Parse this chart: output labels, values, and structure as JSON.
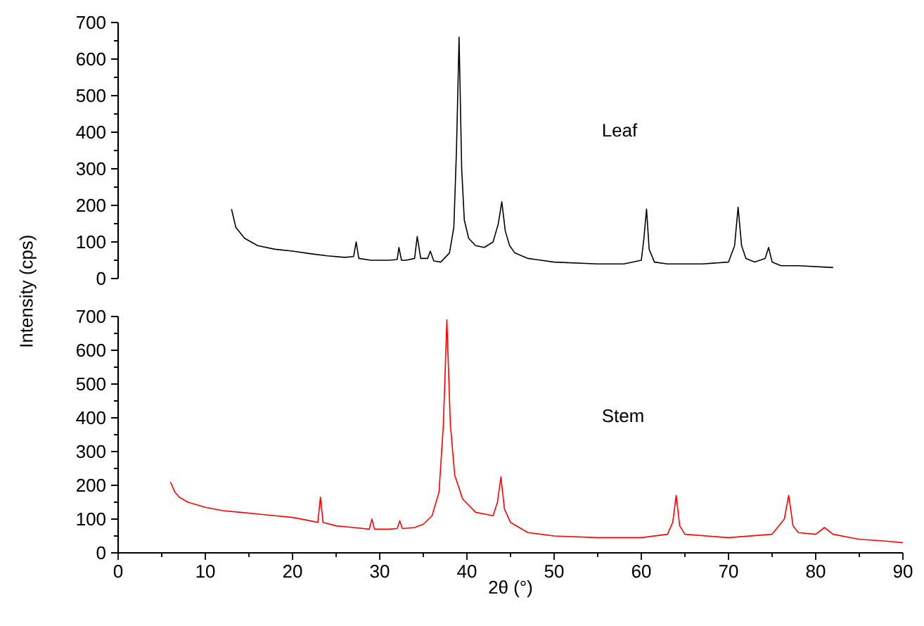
{
  "chart_data": [
    {
      "type": "line",
      "ylabel": "Intensity (cps)",
      "xlim": [
        0,
        90
      ],
      "xticks": [
        0,
        10,
        20,
        30,
        40,
        50,
        60,
        70,
        80,
        90
      ],
      "ylim": [
        0,
        700
      ],
      "yticks": [
        0,
        100,
        200,
        300,
        400,
        500,
        600,
        700
      ],
      "tick_labels": "y",
      "grid": false,
      "legend": false,
      "series": [
        {
          "name": "Leaf",
          "color": "#000000",
          "x": [
            13.0,
            13.5,
            14.5,
            16,
            18,
            20,
            22,
            24,
            26,
            27.0,
            27.3,
            27.6,
            29,
            31,
            32.0,
            32.2,
            32.5,
            33,
            34.0,
            34.3,
            34.7,
            35.5,
            35.8,
            36.2,
            37,
            38,
            38.5,
            38.8,
            39.1,
            39.4,
            39.7,
            40.2,
            41,
            42,
            43,
            43.6,
            44.0,
            44.4,
            44.9,
            45.5,
            47,
            50,
            55,
            58,
            60,
            60.3,
            60.6,
            60.9,
            61.5,
            63,
            67,
            70,
            70.7,
            71.1,
            71.5,
            72,
            73,
            74.2,
            74.6,
            75.0,
            76,
            78,
            82
          ],
          "values": [
            190,
            140,
            110,
            90,
            80,
            75,
            68,
            62,
            58,
            60,
            100,
            55,
            50,
            50,
            52,
            85,
            50,
            50,
            55,
            115,
            55,
            55,
            75,
            48,
            45,
            70,
            140,
            350,
            660,
            300,
            160,
            110,
            90,
            85,
            100,
            150,
            210,
            130,
            90,
            70,
            55,
            45,
            40,
            40,
            50,
            110,
            190,
            80,
            45,
            40,
            40,
            45,
            90,
            195,
            90,
            55,
            45,
            55,
            85,
            45,
            35,
            35,
            30
          ]
        }
      ]
    },
    {
      "type": "line",
      "xlabel": "2θ (°)",
      "xlim": [
        0,
        90
      ],
      "xticks": [
        0,
        10,
        20,
        30,
        40,
        50,
        60,
        70,
        80,
        90
      ],
      "ylim": [
        0,
        700
      ],
      "yticks": [
        0,
        100,
        200,
        300,
        400,
        500,
        600,
        700
      ],
      "grid": false,
      "legend": false,
      "series": [
        {
          "name": "Stem",
          "color": "#ff0000",
          "x": [
            6,
            6.5,
            7,
            8,
            10,
            12,
            14,
            16,
            18,
            20,
            22,
            22.9,
            23.2,
            23.5,
            25,
            27,
            28.8,
            29.1,
            29.4,
            31,
            32.0,
            32.3,
            32.6,
            34,
            35,
            36,
            36.8,
            37.3,
            37.7,
            38.1,
            38.6,
            39.5,
            41,
            43,
            43.5,
            43.9,
            44.3,
            45,
            47,
            50,
            55,
            60,
            63,
            63.6,
            64.0,
            64.4,
            65,
            70,
            75,
            76.4,
            76.9,
            77.4,
            78,
            80,
            81,
            82,
            85,
            88,
            90
          ],
          "values": [
            210,
            180,
            165,
            150,
            135,
            125,
            120,
            115,
            110,
            105,
            95,
            90,
            165,
            90,
            80,
            75,
            70,
            100,
            70,
            70,
            72,
            95,
            72,
            75,
            85,
            110,
            180,
            380,
            690,
            380,
            230,
            160,
            120,
            110,
            150,
            225,
            130,
            90,
            60,
            50,
            45,
            45,
            55,
            90,
            170,
            80,
            55,
            45,
            55,
            100,
            170,
            80,
            60,
            55,
            75,
            55,
            40,
            35,
            30
          ]
        }
      ]
    }
  ]
}
